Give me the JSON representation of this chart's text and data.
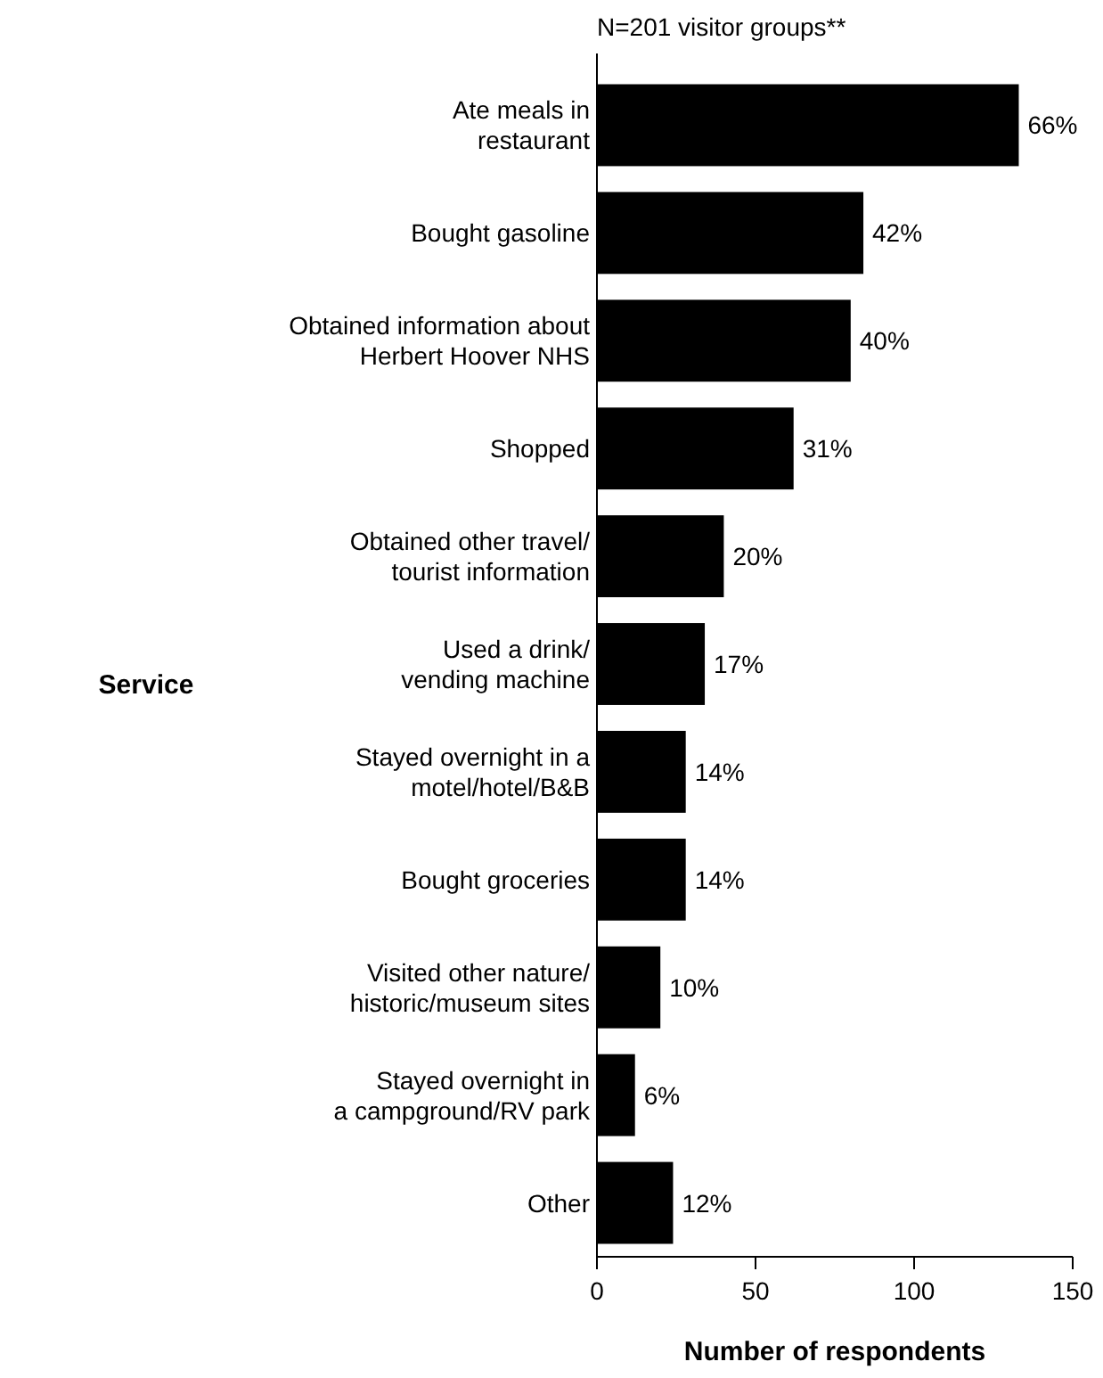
{
  "chart_data": {
    "type": "bar",
    "orientation": "horizontal",
    "title": "N=201 visitor groups**",
    "xlabel": "Number of respondents",
    "ylabel": "Service",
    "categories": [
      "Ate meals in\nrestaurant",
      "Bought gasoline",
      "Obtained information about\nHerbert Hoover NHS",
      "Shopped",
      "Obtained other travel/\ntourist information",
      "Used a drink/\nvending machine",
      "Stayed overnight in a\nmotel/hotel/B&B",
      "Bought groceries",
      "Visited other nature/\nhistoric/museum sites",
      "Stayed overnight in\na campground/RV park",
      "Other"
    ],
    "values": [
      133,
      84,
      80,
      62,
      40,
      34,
      28,
      28,
      20,
      12,
      24
    ],
    "annotations": [
      {
        "text": "66%",
        "x": 133,
        "y": "Ate meals in\nrestaurant"
      },
      {
        "text": "42%",
        "x": 84,
        "y": "Bought gasoline"
      },
      {
        "text": "40%",
        "x": 80,
        "y": "Obtained information about\nHerbert Hoover NHS"
      },
      {
        "text": "31%",
        "x": 62,
        "y": "Shopped"
      },
      {
        "text": "20%",
        "x": 40,
        "y": "Obtained other travel/\ntourist information"
      },
      {
        "text": "17%",
        "x": 34,
        "y": "Used a drink/\nvending machine"
      },
      {
        "text": "14%",
        "x": 28,
        "y": "Stayed overnight in a\nmotel/hotel/B&B"
      },
      {
        "text": "14%",
        "x": 28,
        "y": "Bought groceries"
      },
      {
        "text": "10%",
        "x": 20,
        "y": "Visited other nature/\nhistoric/museum sites"
      },
      {
        "text": "6%",
        "x": 12,
        "y": "Stayed overnight in\na campground/RV park"
      },
      {
        "text": "12%",
        "x": 24,
        "y": "Other"
      }
    ],
    "color": "#000000",
    "xlim": [
      0,
      150
    ],
    "xticks": [
      0,
      50,
      100,
      150
    ],
    "grid": false
  }
}
